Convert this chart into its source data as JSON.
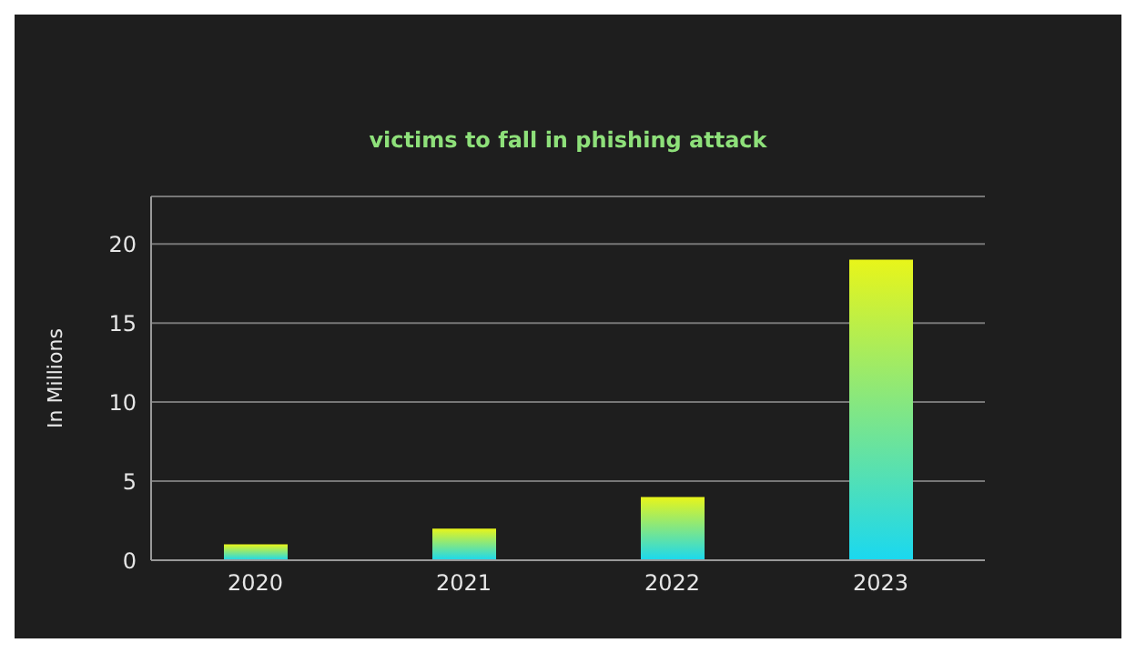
{
  "chart_data": {
    "type": "bar",
    "title": "victims to fall in phishing attack",
    "ylabel": "In Millions",
    "categories": [
      "2020",
      "2021",
      "2022",
      "2023"
    ],
    "values": [
      1,
      2,
      4,
      19
    ],
    "color": "#e8f51a",
    "ylim": [
      0,
      23
    ],
    "yticks": [
      0,
      5,
      10,
      15,
      20
    ],
    "grid": "y"
  }
}
